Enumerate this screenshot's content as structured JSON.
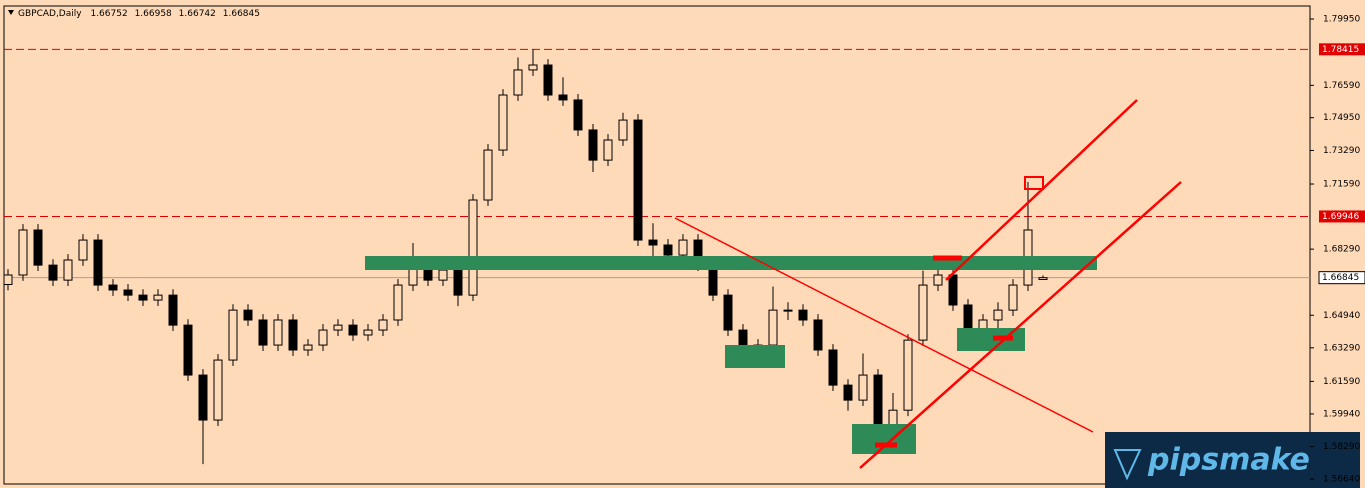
{
  "chart_data": {
    "type": "candlestick",
    "title": "GBPCAD,Daily",
    "logo": "pipsmake",
    "up_color": "#ffdab9",
    "down_color": "#000000",
    "background": "#ffdab9",
    "ylim": [
      1.5639,
      1.8061
    ],
    "yticks": [
      {
        "value": 1.7995,
        "label": "1.79950"
      },
      {
        "value": 1.7659,
        "label": "1.76590"
      },
      {
        "value": 1.7495,
        "label": "1.74950"
      },
      {
        "value": 1.7329,
        "label": "1.73290"
      },
      {
        "value": 1.7159,
        "label": "1.71590"
      },
      {
        "value": 1.6829,
        "label": "1.68290"
      },
      {
        "value": 1.6494,
        "label": "1.64940"
      },
      {
        "value": 1.6329,
        "label": "1.63290"
      },
      {
        "value": 1.6159,
        "label": "1.61590"
      },
      {
        "value": 1.5994,
        "label": "1.59940"
      },
      {
        "value": 1.5829,
        "label": "1.58290"
      },
      {
        "value": 1.5664,
        "label": "1.56640"
      }
    ],
    "price_lines": [
      {
        "value": 1.78415,
        "color": "#e00000"
      },
      {
        "value": 1.69946,
        "color": "#e00000"
      }
    ],
    "open": [
      1.665,
      1.6698,
      1.6926,
      1.6748,
      1.6672,
      1.6774,
      1.6875,
      1.6647,
      1.6622,
      1.6596,
      1.6571,
      1.6596,
      1.6444,
      1.6191,
      1.5963,
      1.6267,
      1.652,
      1.647,
      1.6343,
      1.647,
      1.6318,
      1.6343,
      1.6419,
      1.6444,
      1.6394,
      1.6419,
      1.647,
      1.6647,
      1.6748,
      1.6672,
      1.6723,
      1.6596,
      1.7078,
      1.7331,
      1.761,
      1.7737,
      1.7762,
      1.761,
      1.7585,
      1.7433,
      1.728,
      1.7382,
      1.7483,
      1.6875,
      1.685,
      1.6799,
      1.6875,
      1.6748,
      1.6596,
      1.6419,
      1.6318,
      1.6343,
      1.652,
      1.652,
      1.647,
      1.6318,
      1.614,
      1.6064,
      1.6191,
      1.5912,
      1.6013,
      1.6368,
      1.6647,
      1.6698,
      1.6546,
      1.6394,
      1.647,
      1.652,
      1.6647,
      1.66752
    ],
    "high": [
      1.6728,
      1.6956,
      1.6956,
      1.6778,
      1.6804,
      1.6905,
      1.6905,
      1.6677,
      1.6652,
      1.6626,
      1.6626,
      1.6626,
      1.6474,
      1.6221,
      1.6297,
      1.655,
      1.655,
      1.65,
      1.65,
      1.65,
      1.6373,
      1.6449,
      1.6474,
      1.6474,
      1.6449,
      1.65,
      1.6677,
      1.686,
      1.6778,
      1.6753,
      1.6753,
      1.7108,
      1.7361,
      1.764,
      1.78,
      1.784,
      1.7792,
      1.77,
      1.7615,
      1.7463,
      1.7412,
      1.752,
      1.7513,
      1.696,
      1.688,
      1.6905,
      1.6905,
      1.6778,
      1.6626,
      1.6449,
      1.6373,
      1.664,
      1.656,
      1.655,
      1.65,
      1.6348,
      1.617,
      1.63,
      1.6221,
      1.61,
      1.6398,
      1.672,
      1.678,
      1.6728,
      1.6576,
      1.65,
      1.656,
      1.6677,
      1.717,
      1.66958
    ],
    "low": [
      1.662,
      1.6668,
      1.6718,
      1.6642,
      1.6642,
      1.6744,
      1.6617,
      1.6592,
      1.6566,
      1.6541,
      1.6541,
      1.6414,
      1.6161,
      1.574,
      1.5933,
      1.6237,
      1.644,
      1.6313,
      1.6313,
      1.6288,
      1.6288,
      1.6313,
      1.6389,
      1.6364,
      1.6364,
      1.6389,
      1.644,
      1.6617,
      1.6642,
      1.6642,
      1.654,
      1.6566,
      1.7048,
      1.7301,
      1.758,
      1.7707,
      1.758,
      1.7555,
      1.7403,
      1.722,
      1.725,
      1.7352,
      1.6845,
      1.679,
      1.674,
      1.6769,
      1.6718,
      1.6566,
      1.6389,
      1.626,
      1.626,
      1.6313,
      1.647,
      1.644,
      1.6288,
      1.611,
      1.601,
      1.6034,
      1.584,
      1.587,
      1.5983,
      1.6338,
      1.6617,
      1.6516,
      1.635,
      1.6364,
      1.64,
      1.649,
      1.6617,
      1.66742
    ],
    "close": [
      1.6698,
      1.6926,
      1.6748,
      1.6672,
      1.6774,
      1.6875,
      1.6647,
      1.6622,
      1.6596,
      1.6571,
      1.6596,
      1.6444,
      1.6191,
      1.5963,
      1.6267,
      1.652,
      1.647,
      1.6343,
      1.647,
      1.6318,
      1.6343,
      1.6419,
      1.6444,
      1.6394,
      1.6419,
      1.647,
      1.6647,
      1.6748,
      1.6672,
      1.6723,
      1.6596,
      1.7078,
      1.7331,
      1.761,
      1.7737,
      1.7762,
      1.761,
      1.7585,
      1.7433,
      1.728,
      1.7382,
      1.7483,
      1.6875,
      1.685,
      1.6799,
      1.6875,
      1.6748,
      1.6596,
      1.6419,
      1.6318,
      1.6343,
      1.652,
      1.652,
      1.647,
      1.6318,
      1.614,
      1.6064,
      1.6191,
      1.5912,
      1.6013,
      1.6368,
      1.6647,
      1.6698,
      1.6546,
      1.6394,
      1.647,
      1.652,
      1.6647,
      1.6926,
      1.66845
    ]
  }
}
